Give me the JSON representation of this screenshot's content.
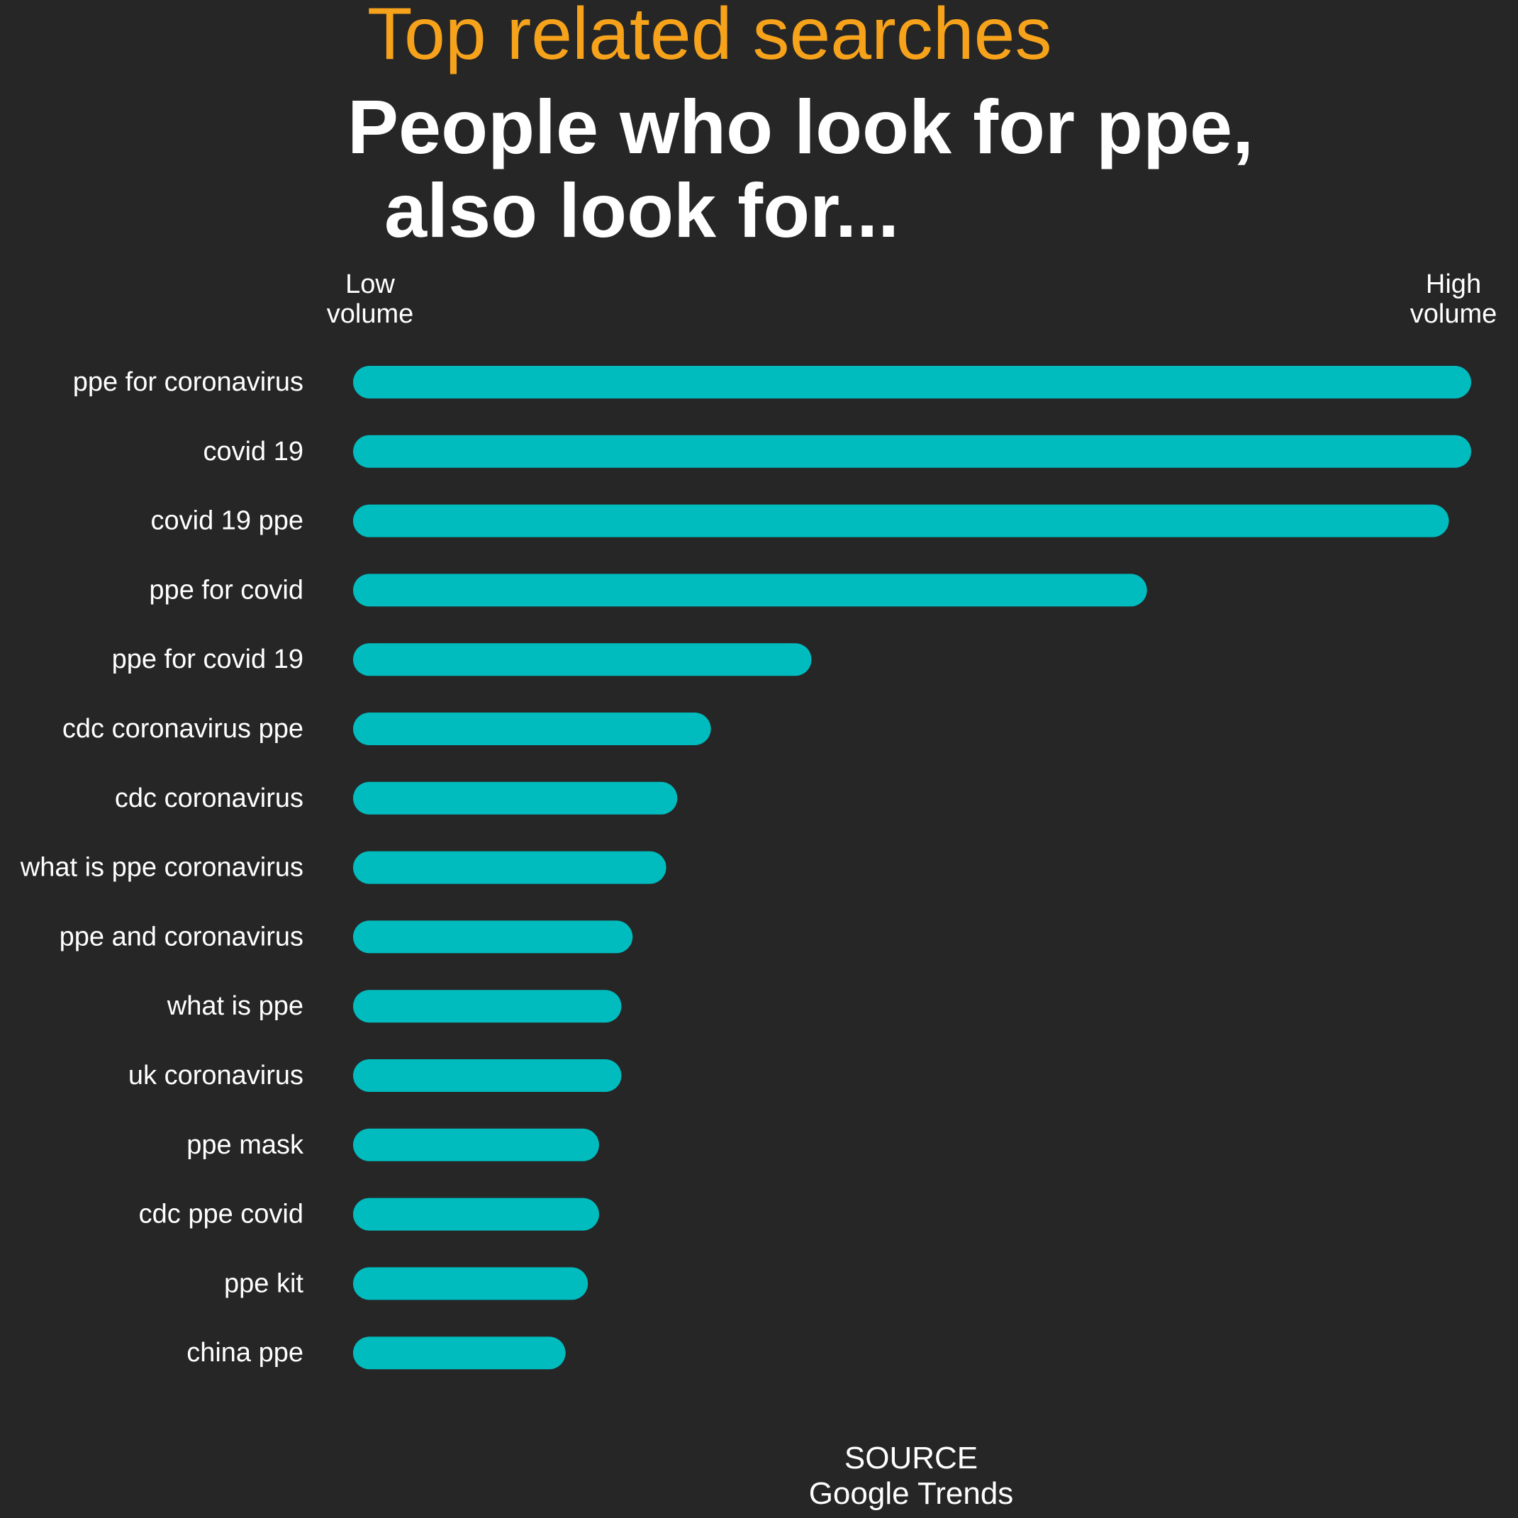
{
  "header": {
    "kicker": "Top related searches",
    "headline_line1": "People who look for ppe,",
    "headline_line2": "also look for..."
  },
  "axis": {
    "low_label": "Low\nvolume",
    "high_label": "High\nvolume"
  },
  "source": {
    "line1": "SOURCE",
    "line2": "Google Trends"
  },
  "colors": {
    "background": "#262626",
    "bar": "#00bcbf",
    "kicker": "#f7a21b",
    "text": "#ffffff"
  },
  "chart_data": {
    "type": "bar",
    "orientation": "horizontal",
    "categories": [
      "ppe for coronavirus",
      "covid 19",
      "covid 19 ppe",
      "ppe for covid",
      "ppe for covid 19",
      "cdc coronavirus ppe",
      "cdc coronavirus",
      "what is ppe coronavirus",
      "ppe and coronavirus",
      "what is ppe",
      "uk coronavirus",
      "ppe mask",
      "cdc ppe covid",
      "ppe kit",
      "china ppe"
    ],
    "values": [
      100,
      100,
      98,
      71,
      41,
      32,
      29,
      28,
      25,
      24,
      24,
      22,
      22,
      21,
      19
    ],
    "xlim": [
      0,
      100
    ],
    "grid": false,
    "legend": "none"
  }
}
